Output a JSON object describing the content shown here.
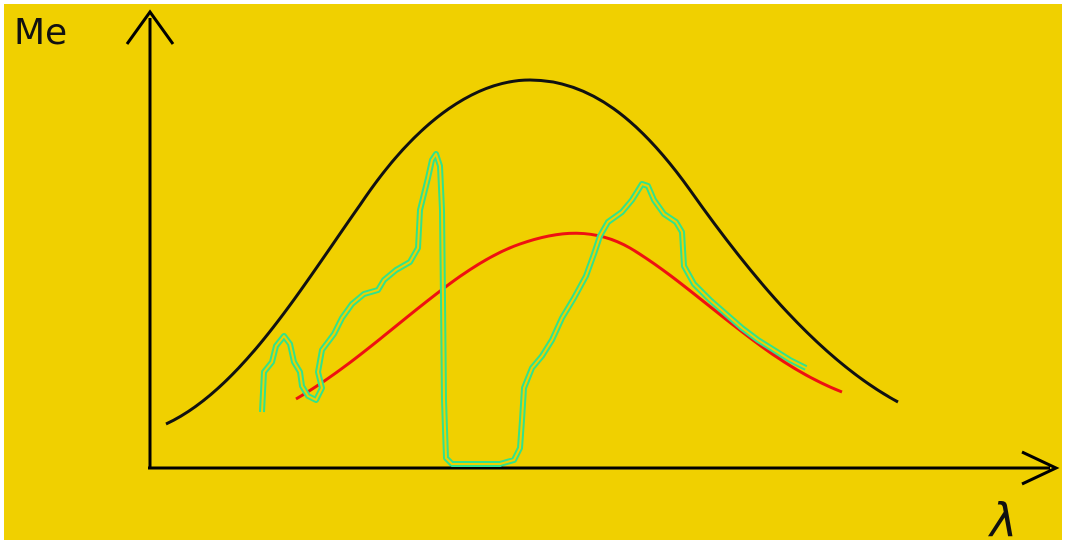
{
  "diagram": {
    "background_color": "#f0d000",
    "page_color": "#ffffff",
    "axis_color": "#000000",
    "y_axis_label": "Me",
    "x_axis_label": "λ",
    "curves": [
      {
        "id": "blackbody-curve",
        "color": "#111111"
      },
      {
        "id": "graybody-curve",
        "color": "#ee1111"
      },
      {
        "id": "real-spectrum-curve",
        "color": "#33e28a"
      }
    ]
  }
}
